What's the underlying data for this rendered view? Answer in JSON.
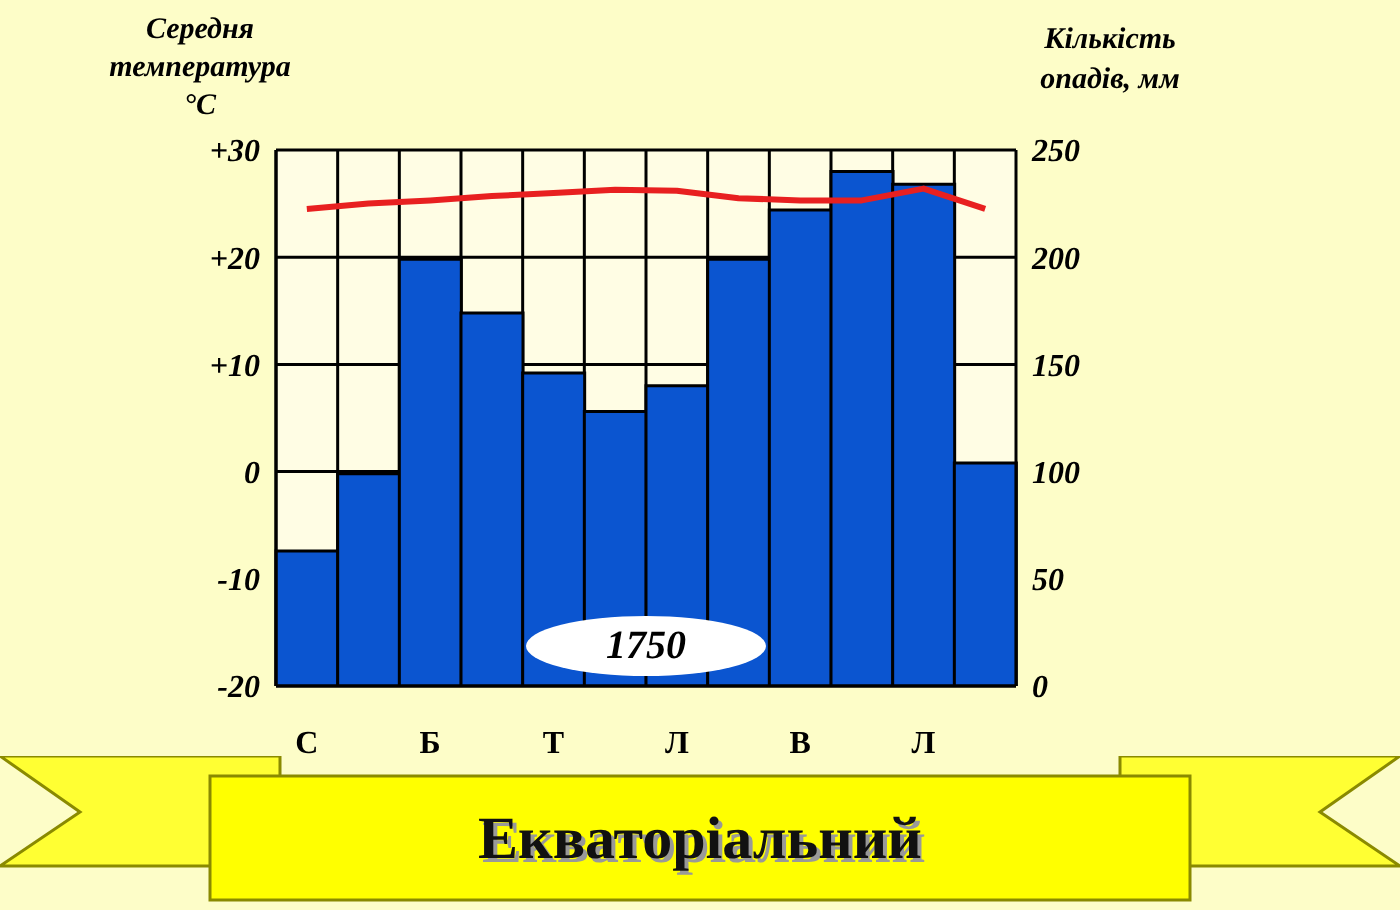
{
  "chart_data": {
    "type": "bar",
    "title": "Екваторіальний",
    "ylabel": "Середня температура °C",
    "y2label": "Кількість опадів, мм",
    "categories": [
      "С",
      null,
      "Б",
      null,
      "Т",
      null,
      "Л",
      null,
      "В",
      null,
      "Л",
      null
    ],
    "series": [
      {
        "axis": "y2",
        "color": "#0b55d0",
        "values": [
          63,
          99,
          199,
          174,
          146,
          128,
          140,
          199,
          222,
          240,
          234,
          104
        ]
      },
      {
        "type": "line",
        "color": "#e82020",
        "values": [
          24.5,
          25,
          25.3,
          25.7,
          26,
          26.3,
          26.2,
          25.5,
          25.3,
          25.3,
          26.4,
          24.5
        ]
      }
    ],
    "ylim": [
      -20,
      30
    ],
    "yticks": [
      {
        "value": 30,
        "label": "+30"
      },
      {
        "value": 20,
        "label": "+20"
      },
      {
        "value": 10,
        "label": "+10"
      },
      0,
      -10,
      -20
    ],
    "y2lim": [
      0,
      250
    ],
    "y2ticks": [
      0,
      50,
      100,
      150,
      200,
      250
    ],
    "grid": true,
    "marker": "none",
    "annotations": [
      "1750"
    ]
  }
}
